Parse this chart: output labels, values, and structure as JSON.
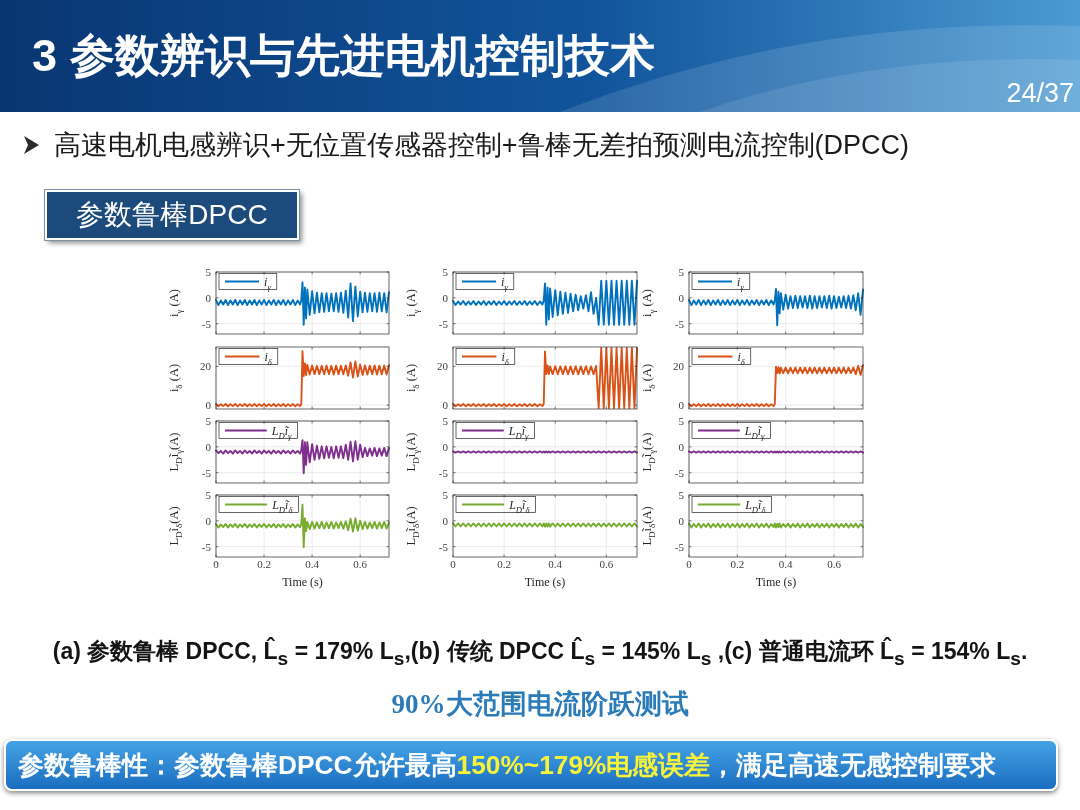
{
  "chart_data": [
    {
      "type": "other",
      "title": "3 参数辨识与先进电机控制技术",
      "subtitle": "高速电机电感辨识+无位置传感器控制+鲁棒无差拍预测电流控制(DPCC)",
      "annotations": [
        "24/37",
        "参数鲁棒DPCC"
      ]
    },
    {
      "type": "line",
      "x": [
        0,
        0.01,
        0.02,
        0.03,
        0.04,
        0.05,
        0.06,
        0.07,
        0.08,
        0.09,
        0.1,
        0.11,
        0.12,
        0.13,
        0.14,
        0.15,
        0.16,
        0.17,
        0.18,
        0.19,
        0.2,
        0.21,
        0.22,
        0.23,
        0.24,
        0.25,
        0.26,
        0.27,
        0.28,
        0.29,
        0.3,
        0.31,
        0.32,
        0.33,
        0.34,
        0.35,
        0.355,
        0.36,
        0.365,
        0.37,
        0.375,
        0.38,
        0.39,
        0.4,
        0.41,
        0.42,
        0.43,
        0.44,
        0.45,
        0.46,
        0.47,
        0.48,
        0.49,
        0.5,
        0.51,
        0.52,
        0.53,
        0.54,
        0.55,
        0.56,
        0.57,
        0.58,
        0.59,
        0.6,
        0.61,
        0.62,
        0.63,
        0.64,
        0.65,
        0.66,
        0.67,
        0.68,
        0.69,
        0.7,
        0.71,
        0.72
      ],
      "xlim": [
        0,
        0.72
      ],
      "xticks": [
        0,
        0.2,
        0.4,
        0.6
      ],
      "ylim": [
        -7,
        5
      ],
      "yticks": [
        -5,
        0,
        5
      ],
      "ylabel": "i$_{γ}$ (A)",
      "grid": true,
      "legend": "top left",
      "tick_labels": "y",
      "series": [
        {
          "name": "i$_{γ}$",
          "color": "#0072bd",
          "values": [
            -0.4,
            -1.4,
            -0.5,
            -1.3,
            -0.4,
            -1.4,
            -0.5,
            -1.3,
            -0.4,
            -1.4,
            -0.5,
            -1.3,
            -0.4,
            -1.4,
            -0.5,
            -1.3,
            -0.4,
            -1.4,
            -0.5,
            -1.3,
            -0.4,
            -1.4,
            -0.5,
            -1.3,
            -0.4,
            -1.4,
            -0.5,
            -1.3,
            -0.4,
            -1.4,
            -0.5,
            -1.3,
            -0.4,
            -1.4,
            -0.5,
            -1.3,
            -0.4,
            3.0,
            -5.2,
            2.0,
            -4.0,
            1.6,
            -3.3,
            1.3,
            -3.0,
            1.0,
            -2.8,
            0.9,
            -2.7,
            0.9,
            -2.6,
            0.8,
            -2.6,
            0.9,
            -2.7,
            1.0,
            -2.9,
            1.4,
            -3.8,
            2.8,
            -4.5,
            2.2,
            -3.6,
            1.2,
            -2.8,
            1.0,
            -2.7,
            0.9,
            -2.6,
            0.9,
            -2.7,
            1.0,
            -2.6,
            0.9,
            -2.8,
            1.1
          ]
        }
      ]
    },
    {
      "type": "line",
      "x": [
        0,
        0.01,
        0.02,
        0.03,
        0.04,
        0.05,
        0.06,
        0.07,
        0.08,
        0.09,
        0.1,
        0.11,
        0.12,
        0.13,
        0.14,
        0.15,
        0.16,
        0.17,
        0.18,
        0.19,
        0.2,
        0.21,
        0.22,
        0.23,
        0.24,
        0.25,
        0.26,
        0.27,
        0.28,
        0.29,
        0.3,
        0.31,
        0.32,
        0.33,
        0.34,
        0.35,
        0.355,
        0.36,
        0.365,
        0.37,
        0.375,
        0.38,
        0.39,
        0.4,
        0.41,
        0.42,
        0.43,
        0.44,
        0.45,
        0.46,
        0.47,
        0.48,
        0.49,
        0.5,
        0.51,
        0.52,
        0.53,
        0.54,
        0.55,
        0.56,
        0.57,
        0.58,
        0.59,
        0.6,
        0.61,
        0.62,
        0.63,
        0.64,
        0.65,
        0.66,
        0.67,
        0.68,
        0.69,
        0.7,
        0.71,
        0.72
      ],
      "xlim": [
        0,
        0.72
      ],
      "xticks": [
        0,
        0.2,
        0.4,
        0.6
      ],
      "ylim": [
        -7,
        5
      ],
      "yticks": [
        -5,
        0,
        5
      ],
      "ylabel": "i$_{γ}$ (A)",
      "grid": true,
      "legend": "top left",
      "tick_labels": "y",
      "series": [
        {
          "name": "i$_{γ}$",
          "color": "#0072bd",
          "values": [
            -0.6,
            -1.4,
            -0.7,
            -1.3,
            -0.6,
            -1.4,
            -0.7,
            -1.3,
            -0.6,
            -1.4,
            -0.7,
            -1.3,
            -0.6,
            -1.4,
            -0.7,
            -1.3,
            -0.6,
            -1.4,
            -0.7,
            -1.3,
            -0.6,
            -1.4,
            -0.7,
            -1.3,
            -0.6,
            -1.4,
            -0.7,
            -1.3,
            -0.6,
            -1.4,
            -0.7,
            -1.3,
            -0.6,
            -1.4,
            -0.7,
            -1.3,
            -0.6,
            2.8,
            -5.2,
            2.0,
            -4.2,
            1.8,
            -3.7,
            1.5,
            -3.4,
            1.2,
            -3.1,
            1.0,
            -2.9,
            0.8,
            -2.6,
            0.6,
            -2.4,
            0.3,
            -2.1,
            0.5,
            -2.6,
            1.1,
            -3.1,
            0.0,
            -5.2,
            3.3,
            -5.2,
            3.3,
            -5.2,
            3.3,
            -5.2,
            3.3,
            -5.2,
            3.3,
            -5.2,
            3.3,
            -5.2,
            3.3,
            -5.2,
            3.3
          ]
        }
      ]
    },
    {
      "type": "line",
      "x": [
        0,
        0.01,
        0.02,
        0.03,
        0.04,
        0.05,
        0.06,
        0.07,
        0.08,
        0.09,
        0.1,
        0.11,
        0.12,
        0.13,
        0.14,
        0.15,
        0.16,
        0.17,
        0.18,
        0.19,
        0.2,
        0.21,
        0.22,
        0.23,
        0.24,
        0.25,
        0.26,
        0.27,
        0.28,
        0.29,
        0.3,
        0.31,
        0.32,
        0.33,
        0.34,
        0.35,
        0.355,
        0.36,
        0.365,
        0.37,
        0.375,
        0.38,
        0.39,
        0.4,
        0.41,
        0.42,
        0.43,
        0.44,
        0.45,
        0.46,
        0.47,
        0.48,
        0.49,
        0.5,
        0.51,
        0.52,
        0.53,
        0.54,
        0.55,
        0.56,
        0.57,
        0.58,
        0.59,
        0.6,
        0.61,
        0.62,
        0.63,
        0.64,
        0.65,
        0.66,
        0.67,
        0.68,
        0.69,
        0.7,
        0.71,
        0.72
      ],
      "xlim": [
        0,
        0.72
      ],
      "xticks": [
        0,
        0.2,
        0.4,
        0.6
      ],
      "ylim": [
        -7,
        5
      ],
      "yticks": [
        -5,
        0,
        5
      ],
      "ylabel": "i$_{γ}$ (A)",
      "grid": true,
      "legend": "top left",
      "tick_labels": "y",
      "series": [
        {
          "name": "i$_{γ}$",
          "color": "#0072bd",
          "values": [
            -0.4,
            -1.4,
            -0.5,
            -1.3,
            -0.4,
            -1.4,
            -0.5,
            -1.3,
            -0.4,
            -1.4,
            -0.5,
            -1.3,
            -0.4,
            -1.4,
            -0.5,
            -1.3,
            -0.4,
            -1.4,
            -0.5,
            -1.3,
            -0.4,
            -1.4,
            -0.5,
            -1.3,
            -0.4,
            -1.4,
            -0.5,
            -1.3,
            -0.4,
            -1.4,
            -0.5,
            -1.3,
            -0.4,
            -1.4,
            -0.5,
            -1.3,
            -0.4,
            1.7,
            -5.3,
            1.2,
            -3.0,
            0.9,
            -2.3,
            0.6,
            -2.1,
            0.3,
            -2.0,
            0.4,
            -2.0,
            0.3,
            -1.9,
            0.3,
            -2.0,
            0.4,
            -2.1,
            0.3,
            -2.0,
            0.3,
            -1.9,
            0.3,
            -2.0,
            0.4,
            -2.1,
            0.3,
            -2.0,
            0.2,
            -1.9,
            0.3,
            -2.0,
            0.4,
            -2.1,
            0.5,
            -2.4,
            0.9,
            -3.3,
            1.6
          ]
        }
      ]
    },
    {
      "type": "line",
      "x": [
        0,
        0.01,
        0.02,
        0.03,
        0.04,
        0.05,
        0.06,
        0.07,
        0.08,
        0.09,
        0.1,
        0.11,
        0.12,
        0.13,
        0.14,
        0.15,
        0.16,
        0.17,
        0.18,
        0.19,
        0.2,
        0.21,
        0.22,
        0.23,
        0.24,
        0.25,
        0.26,
        0.27,
        0.28,
        0.29,
        0.3,
        0.31,
        0.32,
        0.33,
        0.34,
        0.35,
        0.355,
        0.36,
        0.365,
        0.37,
        0.375,
        0.38,
        0.39,
        0.4,
        0.41,
        0.42,
        0.43,
        0.44,
        0.45,
        0.46,
        0.47,
        0.48,
        0.49,
        0.5,
        0.51,
        0.52,
        0.53,
        0.54,
        0.55,
        0.56,
        0.57,
        0.58,
        0.59,
        0.6,
        0.61,
        0.62,
        0.63,
        0.64,
        0.65,
        0.66,
        0.67,
        0.68,
        0.69,
        0.7,
        0.71,
        0.72
      ],
      "xlim": [
        0,
        0.72
      ],
      "xticks": [
        0,
        0.2,
        0.4,
        0.6
      ],
      "ylim": [
        -2,
        30
      ],
      "yticks": [
        0,
        20
      ],
      "ylabel": "i$_{δ}$ (A)",
      "grid": true,
      "legend": "top left",
      "tick_labels": "y",
      "series": [
        {
          "name": "i$_{δ}$",
          "color": "#d95319",
          "values": [
            0.6,
            -0.6,
            0.5,
            -0.5,
            0.6,
            -0.6,
            0.5,
            -0.5,
            0.6,
            -0.6,
            0.5,
            -0.5,
            0.6,
            -0.6,
            0.5,
            -0.5,
            0.6,
            -0.6,
            0.5,
            -0.5,
            0.6,
            -0.6,
            0.5,
            -0.5,
            0.6,
            -0.6,
            0.5,
            -0.5,
            0.6,
            -0.6,
            0.5,
            -0.5,
            0.6,
            -0.6,
            0.5,
            -0.5,
            0.6,
            27.8,
            15.0,
            21.5,
            15.5,
            20.8,
            15.8,
            20.5,
            16.0,
            20.3,
            16.0,
            20.3,
            15.9,
            20.4,
            16.0,
            20.3,
            15.8,
            20.4,
            16.0,
            20.3,
            15.9,
            20.5,
            15.2,
            22.0,
            14.2,
            22.5,
            14.8,
            21.0,
            15.6,
            20.5,
            15.8,
            20.4,
            15.9,
            20.5,
            15.8,
            20.4,
            15.9,
            20.5,
            15.8,
            20.6
          ]
        }
      ]
    },
    {
      "type": "line",
      "x": [
        0,
        0.01,
        0.02,
        0.03,
        0.04,
        0.05,
        0.06,
        0.07,
        0.08,
        0.09,
        0.1,
        0.11,
        0.12,
        0.13,
        0.14,
        0.15,
        0.16,
        0.17,
        0.18,
        0.19,
        0.2,
        0.21,
        0.22,
        0.23,
        0.24,
        0.25,
        0.26,
        0.27,
        0.28,
        0.29,
        0.3,
        0.31,
        0.32,
        0.33,
        0.34,
        0.35,
        0.355,
        0.36,
        0.365,
        0.37,
        0.375,
        0.38,
        0.39,
        0.4,
        0.41,
        0.42,
        0.43,
        0.44,
        0.45,
        0.46,
        0.47,
        0.48,
        0.49,
        0.5,
        0.51,
        0.52,
        0.53,
        0.54,
        0.55,
        0.56,
        0.57,
        0.58,
        0.59,
        0.6,
        0.61,
        0.62,
        0.63,
        0.64,
        0.65,
        0.66,
        0.67,
        0.68,
        0.69,
        0.7,
        0.71,
        0.72
      ],
      "xlim": [
        0,
        0.72
      ],
      "xticks": [
        0,
        0.2,
        0.4,
        0.6
      ],
      "ylim": [
        -2,
        30
      ],
      "yticks": [
        0,
        20
      ],
      "ylabel": "i$_{δ}$ (A)",
      "grid": true,
      "legend": "top left",
      "tick_labels": "y",
      "series": [
        {
          "name": "i$_{δ}$",
          "color": "#d95319",
          "values": [
            0.6,
            -0.6,
            0.5,
            -0.5,
            0.6,
            -0.6,
            0.5,
            -0.5,
            0.6,
            -0.6,
            0.5,
            -0.5,
            0.6,
            -0.6,
            0.5,
            -0.5,
            0.6,
            -0.6,
            0.5,
            -0.5,
            0.6,
            -0.6,
            0.5,
            -0.5,
            0.6,
            -0.6,
            0.5,
            -0.5,
            0.6,
            -0.6,
            0.5,
            -0.5,
            0.6,
            -0.6,
            0.5,
            -0.5,
            0.6,
            27.7,
            16.0,
            20.5,
            16.0,
            20.0,
            16.0,
            20.1,
            15.9,
            20.0,
            16.0,
            20.1,
            15.9,
            20.0,
            16.0,
            20.1,
            15.9,
            20.0,
            16.0,
            20.1,
            15.9,
            20.0,
            16.0,
            20.2,
            -1.5,
            29.5,
            -1.5,
            29.5,
            -1.5,
            29.5,
            -1.5,
            29.5,
            -1.5,
            29.5,
            -1.5,
            29.5,
            -1.5,
            29.5,
            -1.5,
            29.5
          ]
        }
      ]
    },
    {
      "type": "line",
      "x": [
        0,
        0.01,
        0.02,
        0.03,
        0.04,
        0.05,
        0.06,
        0.07,
        0.08,
        0.09,
        0.1,
        0.11,
        0.12,
        0.13,
        0.14,
        0.15,
        0.16,
        0.17,
        0.18,
        0.19,
        0.2,
        0.21,
        0.22,
        0.23,
        0.24,
        0.25,
        0.26,
        0.27,
        0.28,
        0.29,
        0.3,
        0.31,
        0.32,
        0.33,
        0.34,
        0.35,
        0.355,
        0.36,
        0.365,
        0.37,
        0.375,
        0.38,
        0.39,
        0.4,
        0.41,
        0.42,
        0.43,
        0.44,
        0.45,
        0.46,
        0.47,
        0.48,
        0.49,
        0.5,
        0.51,
        0.52,
        0.53,
        0.54,
        0.55,
        0.56,
        0.57,
        0.58,
        0.59,
        0.6,
        0.61,
        0.62,
        0.63,
        0.64,
        0.65,
        0.66,
        0.67,
        0.68,
        0.69,
        0.7,
        0.71,
        0.72
      ],
      "xlim": [
        0,
        0.72
      ],
      "xticks": [
        0,
        0.2,
        0.4,
        0.6
      ],
      "ylim": [
        -2,
        30
      ],
      "yticks": [
        0,
        20
      ],
      "ylabel": "i$_{δ}$ (A)",
      "grid": true,
      "legend": "top left",
      "tick_labels": "y",
      "series": [
        {
          "name": "i$_{δ}$",
          "color": "#d95319",
          "values": [
            0.6,
            -0.6,
            0.5,
            -0.5,
            0.6,
            -0.6,
            0.5,
            -0.5,
            0.6,
            -0.6,
            0.5,
            -0.5,
            0.6,
            -0.6,
            0.5,
            -0.5,
            0.6,
            -0.6,
            0.5,
            -0.5,
            0.6,
            -0.6,
            0.5,
            -0.5,
            0.6,
            -0.6,
            0.5,
            -0.5,
            0.6,
            -0.6,
            0.5,
            -0.5,
            0.6,
            -0.6,
            0.5,
            -0.5,
            0.6,
            19.8,
            16.5,
            19.6,
            16.3,
            19.3,
            16.5,
            19.4,
            16.4,
            19.3,
            16.5,
            19.4,
            16.4,
            19.3,
            16.5,
            19.4,
            16.4,
            19.3,
            16.5,
            19.4,
            16.4,
            19.3,
            16.5,
            19.4,
            16.4,
            19.3,
            16.5,
            19.4,
            16.4,
            19.3,
            16.5,
            19.4,
            16.4,
            19.3,
            16.5,
            19.4,
            16.0,
            20.3,
            15.6,
            20.6
          ]
        }
      ]
    },
    {
      "type": "line",
      "x": [
        0,
        0.01,
        0.02,
        0.03,
        0.04,
        0.05,
        0.06,
        0.07,
        0.08,
        0.09,
        0.1,
        0.11,
        0.12,
        0.13,
        0.14,
        0.15,
        0.16,
        0.17,
        0.18,
        0.19,
        0.2,
        0.21,
        0.22,
        0.23,
        0.24,
        0.25,
        0.26,
        0.27,
        0.28,
        0.29,
        0.3,
        0.31,
        0.32,
        0.33,
        0.34,
        0.35,
        0.355,
        0.36,
        0.365,
        0.37,
        0.375,
        0.38,
        0.39,
        0.4,
        0.41,
        0.42,
        0.43,
        0.44,
        0.45,
        0.46,
        0.47,
        0.48,
        0.49,
        0.5,
        0.51,
        0.52,
        0.53,
        0.54,
        0.55,
        0.56,
        0.57,
        0.58,
        0.59,
        0.6,
        0.61,
        0.62,
        0.63,
        0.64,
        0.65,
        0.66,
        0.67,
        0.68,
        0.69,
        0.7,
        0.71,
        0.72
      ],
      "xlim": [
        0,
        0.72
      ],
      "xticks": [
        0,
        0.2,
        0.4,
        0.6
      ],
      "ylim": [
        -7,
        5
      ],
      "yticks": [
        -5,
        0,
        5
      ],
      "ylabel": "L$_{D}$ĩ$_{γ}$(A)",
      "grid": true,
      "legend": "top left",
      "tick_labels": "y",
      "series": [
        {
          "name": "L$_{D}$ĩ$_{γ}$",
          "color": "#7e2f8e",
          "values": [
            -0.7,
            -1.2,
            -0.8,
            -1.3,
            -0.7,
            -1.2,
            -0.8,
            -1.3,
            -0.7,
            -1.2,
            -0.8,
            -1.3,
            -0.7,
            -1.2,
            -0.8,
            -1.3,
            -0.7,
            -1.2,
            -0.8,
            -1.3,
            -0.7,
            -1.2,
            -0.8,
            -1.3,
            -0.7,
            -1.2,
            -0.8,
            -1.3,
            -0.7,
            -1.2,
            -0.8,
            -1.3,
            -0.7,
            -1.2,
            -0.8,
            -1.3,
            -0.7,
            1.3,
            -5.1,
            0.9,
            -3.5,
            0.9,
            -3.0,
            0.5,
            -2.5,
            0.2,
            -2.3,
            0.1,
            -2.2,
            0.1,
            -2.1,
            0.0,
            -2.2,
            0.1,
            -2.1,
            0.1,
            -2.2,
            0.4,
            -2.5,
            1.0,
            -2.8,
            1.1,
            -2.5,
            0.4,
            -2.0,
            -0.2,
            -1.8,
            -0.3,
            -1.7,
            -0.2,
            -1.8,
            -0.3,
            -1.7,
            -0.2,
            -1.8,
            -0.2
          ]
        }
      ]
    },
    {
      "type": "line",
      "x": [
        0,
        0.01,
        0.02,
        0.03,
        0.04,
        0.05,
        0.06,
        0.07,
        0.08,
        0.09,
        0.1,
        0.11,
        0.12,
        0.13,
        0.14,
        0.15,
        0.16,
        0.17,
        0.18,
        0.19,
        0.2,
        0.21,
        0.22,
        0.23,
        0.24,
        0.25,
        0.26,
        0.27,
        0.28,
        0.29,
        0.3,
        0.31,
        0.32,
        0.33,
        0.34,
        0.35,
        0.355,
        0.36,
        0.365,
        0.37,
        0.375,
        0.38,
        0.39,
        0.4,
        0.41,
        0.42,
        0.43,
        0.44,
        0.45,
        0.46,
        0.47,
        0.48,
        0.49,
        0.5,
        0.51,
        0.52,
        0.53,
        0.54,
        0.55,
        0.56,
        0.57,
        0.58,
        0.59,
        0.6,
        0.61,
        0.62,
        0.63,
        0.64,
        0.65,
        0.66,
        0.67,
        0.68,
        0.69,
        0.7,
        0.71,
        0.72
      ],
      "xlim": [
        0,
        0.72
      ],
      "xticks": [
        0,
        0.2,
        0.4,
        0.6
      ],
      "ylim": [
        -7,
        5
      ],
      "yticks": [
        -5,
        0,
        5
      ],
      "ylabel": "L$_{D}$ĩ$_{γ}$(A)",
      "grid": true,
      "legend": "top left",
      "tick_labels": "y",
      "series": [
        {
          "name": "L$_{D}$ĩ$_{γ}$",
          "color": "#7e2f8e",
          "values": [
            -0.9,
            -1.1,
            -0.9,
            -1.1,
            -0.9,
            -1.1,
            -0.9,
            -1.1,
            -0.9,
            -1.1,
            -0.9,
            -1.1,
            -0.9,
            -1.1,
            -0.9,
            -1.1,
            -0.9,
            -1.1,
            -0.9,
            -1.1,
            -0.9,
            -1.1,
            -0.9,
            -1.1,
            -0.9,
            -1.1,
            -0.9,
            -1.1,
            -0.9,
            -1.1,
            -0.9,
            -1.1,
            -0.9,
            -1.1,
            -0.9,
            -1.1,
            -0.9,
            -1.1,
            -0.9,
            -1.1,
            -0.9,
            -1.1,
            -0.9,
            -1.1,
            -0.9,
            -1.1,
            -0.9,
            -1.1,
            -0.9,
            -1.1,
            -0.9,
            -1.1,
            -0.9,
            -1.1,
            -0.9,
            -1.1,
            -0.9,
            -1.1,
            -0.9,
            -1.1,
            -0.9,
            -1.1,
            -0.9,
            -1.1,
            -0.9,
            -1.1,
            -0.9,
            -1.1,
            -0.9,
            -1.1,
            -0.9,
            -1.1,
            -0.9,
            -1.1,
            -0.9,
            -1.1
          ]
        }
      ]
    },
    {
      "type": "line",
      "x": [
        0,
        0.01,
        0.02,
        0.03,
        0.04,
        0.05,
        0.06,
        0.07,
        0.08,
        0.09,
        0.1,
        0.11,
        0.12,
        0.13,
        0.14,
        0.15,
        0.16,
        0.17,
        0.18,
        0.19,
        0.2,
        0.21,
        0.22,
        0.23,
        0.24,
        0.25,
        0.26,
        0.27,
        0.28,
        0.29,
        0.3,
        0.31,
        0.32,
        0.33,
        0.34,
        0.35,
        0.355,
        0.36,
        0.365,
        0.37,
        0.375,
        0.38,
        0.39,
        0.4,
        0.41,
        0.42,
        0.43,
        0.44,
        0.45,
        0.46,
        0.47,
        0.48,
        0.49,
        0.5,
        0.51,
        0.52,
        0.53,
        0.54,
        0.55,
        0.56,
        0.57,
        0.58,
        0.59,
        0.6,
        0.61,
        0.62,
        0.63,
        0.64,
        0.65,
        0.66,
        0.67,
        0.68,
        0.69,
        0.7,
        0.71,
        0.72
      ],
      "xlim": [
        0,
        0.72
      ],
      "xticks": [
        0,
        0.2,
        0.4,
        0.6
      ],
      "ylim": [
        -7,
        5
      ],
      "yticks": [
        -5,
        0,
        5
      ],
      "ylabel": "L$_{D}$ĩ$_{γ}$(A)",
      "grid": true,
      "legend": "top left",
      "tick_labels": "y",
      "series": [
        {
          "name": "L$_{D}$ĩ$_{γ}$",
          "color": "#7e2f8e",
          "values": [
            -0.9,
            -1.1,
            -0.9,
            -1.1,
            -0.9,
            -1.1,
            -0.9,
            -1.1,
            -0.9,
            -1.1,
            -0.9,
            -1.1,
            -0.9,
            -1.1,
            -0.9,
            -1.1,
            -0.9,
            -1.1,
            -0.9,
            -1.1,
            -0.9,
            -1.1,
            -0.9,
            -1.1,
            -0.9,
            -1.1,
            -0.9,
            -1.1,
            -0.9,
            -1.1,
            -0.9,
            -1.1,
            -0.9,
            -1.1,
            -0.9,
            -1.1,
            -0.9,
            -1.1,
            -0.9,
            -1.1,
            -0.9,
            -1.1,
            -0.9,
            -1.1,
            -0.9,
            -1.1,
            -0.9,
            -1.1,
            -0.9,
            -1.1,
            -0.9,
            -1.1,
            -0.9,
            -1.1,
            -0.9,
            -1.1,
            -0.9,
            -1.1,
            -0.9,
            -1.1,
            -0.9,
            -1.1,
            -0.9,
            -1.1,
            -0.9,
            -1.1,
            -0.9,
            -1.1,
            -0.9,
            -1.1,
            -0.9,
            -1.1,
            -0.9,
            -1.1,
            -0.9,
            -1.1
          ]
        }
      ]
    },
    {
      "type": "line",
      "x": [
        0,
        0.01,
        0.02,
        0.03,
        0.04,
        0.05,
        0.06,
        0.07,
        0.08,
        0.09,
        0.1,
        0.11,
        0.12,
        0.13,
        0.14,
        0.15,
        0.16,
        0.17,
        0.18,
        0.19,
        0.2,
        0.21,
        0.22,
        0.23,
        0.24,
        0.25,
        0.26,
        0.27,
        0.28,
        0.29,
        0.3,
        0.31,
        0.32,
        0.33,
        0.34,
        0.35,
        0.355,
        0.36,
        0.365,
        0.37,
        0.375,
        0.38,
        0.39,
        0.4,
        0.41,
        0.42,
        0.43,
        0.44,
        0.45,
        0.46,
        0.47,
        0.48,
        0.49,
        0.5,
        0.51,
        0.52,
        0.53,
        0.54,
        0.55,
        0.56,
        0.57,
        0.58,
        0.59,
        0.6,
        0.61,
        0.62,
        0.63,
        0.64,
        0.65,
        0.66,
        0.67,
        0.68,
        0.69,
        0.7,
        0.71,
        0.72
      ],
      "xlim": [
        0,
        0.72
      ],
      "xticks": [
        0,
        0.2,
        0.4,
        0.6
      ],
      "ylim": [
        -7,
        5
      ],
      "yticks": [
        -5,
        0,
        5
      ],
      "ylabel": "L$_{D}$ĩ$_{δ}$(A)",
      "xlabel": "Time (s)",
      "grid": true,
      "legend": "top left",
      "series": [
        {
          "name": "L$_{D}$ĩ$_{δ}$",
          "color": "#77ac30",
          "values": [
            -0.6,
            -1.3,
            -0.7,
            -1.2,
            -0.6,
            -1.3,
            -0.7,
            -1.2,
            -0.6,
            -1.3,
            -0.7,
            -1.2,
            -0.6,
            -1.3,
            -0.7,
            -1.2,
            -0.6,
            -1.3,
            -0.7,
            -1.2,
            -0.6,
            -1.3,
            -0.7,
            -1.2,
            -0.6,
            -1.3,
            -0.7,
            -1.2,
            -0.6,
            -1.3,
            -0.7,
            -1.2,
            -0.6,
            -1.3,
            -0.7,
            -1.2,
            -0.6,
            3.1,
            -5.1,
            0.5,
            -2.0,
            -0.2,
            -1.6,
            -0.2,
            -1.5,
            -0.3,
            -1.4,
            -0.2,
            -1.5,
            -0.3,
            -1.4,
            -0.2,
            -1.5,
            -0.3,
            -1.4,
            -0.2,
            -1.5,
            -0.1,
            -1.8,
            0.4,
            -2.1,
            0.5,
            -1.9,
            0.0,
            -1.6,
            -0.2,
            -1.5,
            -0.3,
            -1.4,
            -0.2,
            -1.5,
            -0.3,
            -1.4,
            -0.2,
            -1.5,
            -0.3
          ]
        }
      ]
    },
    {
      "type": "line",
      "x": [
        0,
        0.01,
        0.02,
        0.03,
        0.04,
        0.05,
        0.06,
        0.07,
        0.08,
        0.09,
        0.1,
        0.11,
        0.12,
        0.13,
        0.14,
        0.15,
        0.16,
        0.17,
        0.18,
        0.19,
        0.2,
        0.21,
        0.22,
        0.23,
        0.24,
        0.25,
        0.26,
        0.27,
        0.28,
        0.29,
        0.3,
        0.31,
        0.32,
        0.33,
        0.34,
        0.35,
        0.355,
        0.36,
        0.365,
        0.37,
        0.375,
        0.38,
        0.39,
        0.4,
        0.41,
        0.42,
        0.43,
        0.44,
        0.45,
        0.46,
        0.47,
        0.48,
        0.49,
        0.5,
        0.51,
        0.52,
        0.53,
        0.54,
        0.55,
        0.56,
        0.57,
        0.58,
        0.59,
        0.6,
        0.61,
        0.62,
        0.63,
        0.64,
        0.65,
        0.66,
        0.67,
        0.68,
        0.69,
        0.7,
        0.71,
        0.72
      ],
      "xlim": [
        0,
        0.72
      ],
      "xticks": [
        0,
        0.2,
        0.4,
        0.6
      ],
      "ylim": [
        -7,
        5
      ],
      "yticks": [
        -5,
        0,
        5
      ],
      "ylabel": "L$_{D}$ĩ$_{δ}$(A)",
      "xlabel": "Time (s)",
      "grid": true,
      "legend": "top left",
      "series": [
        {
          "name": "L$_{D}$ĩ$_{δ}$",
          "color": "#77ac30",
          "values": [
            -0.5,
            -1.1,
            -0.5,
            -1.1,
            -0.5,
            -1.1,
            -0.5,
            -1.1,
            -0.5,
            -1.1,
            -0.5,
            -1.1,
            -0.5,
            -1.1,
            -0.5,
            -1.1,
            -0.5,
            -1.1,
            -0.5,
            -1.1,
            -0.5,
            -1.1,
            -0.5,
            -1.1,
            -0.5,
            -1.1,
            -0.5,
            -1.1,
            -0.5,
            -1.1,
            -0.5,
            -1.1,
            -0.5,
            -1.1,
            -0.5,
            -1.1,
            -0.5,
            -1.1,
            -0.5,
            -1.1,
            -0.5,
            -1.1,
            -0.5,
            -1.1,
            -0.5,
            -1.1,
            -0.5,
            -1.1,
            -0.5,
            -1.1,
            -0.5,
            -1.1,
            -0.5,
            -1.1,
            -0.5,
            -1.1,
            -0.5,
            -1.1,
            -0.5,
            -1.1,
            -0.5,
            -1.1,
            -0.5,
            -1.1,
            -0.5,
            -1.1,
            -0.5,
            -1.1,
            -0.5,
            -1.1,
            -0.5,
            -1.1,
            -0.5,
            -1.1,
            -0.5,
            -1.1
          ]
        }
      ]
    },
    {
      "type": "line",
      "x": [
        0,
        0.01,
        0.02,
        0.03,
        0.04,
        0.05,
        0.06,
        0.07,
        0.08,
        0.09,
        0.1,
        0.11,
        0.12,
        0.13,
        0.14,
        0.15,
        0.16,
        0.17,
        0.18,
        0.19,
        0.2,
        0.21,
        0.22,
        0.23,
        0.24,
        0.25,
        0.26,
        0.27,
        0.28,
        0.29,
        0.3,
        0.31,
        0.32,
        0.33,
        0.34,
        0.35,
        0.355,
        0.36,
        0.365,
        0.37,
        0.375,
        0.38,
        0.39,
        0.4,
        0.41,
        0.42,
        0.43,
        0.44,
        0.45,
        0.46,
        0.47,
        0.48,
        0.49,
        0.5,
        0.51,
        0.52,
        0.53,
        0.54,
        0.55,
        0.56,
        0.57,
        0.58,
        0.59,
        0.6,
        0.61,
        0.62,
        0.63,
        0.64,
        0.65,
        0.66,
        0.67,
        0.68,
        0.69,
        0.7,
        0.71,
        0.72
      ],
      "xlim": [
        0,
        0.72
      ],
      "xticks": [
        0,
        0.2,
        0.4,
        0.6
      ],
      "ylim": [
        -7,
        5
      ],
      "yticks": [
        -5,
        0,
        5
      ],
      "ylabel": "L$_{D}$ĩ$_{δ}$(A)",
      "xlabel": "Time (s)",
      "grid": true,
      "legend": "top left",
      "series": [
        {
          "name": "L$_{D}$ĩ$_{δ}$",
          "color": "#77ac30",
          "values": [
            -0.5,
            -1.3,
            -0.6,
            -1.2,
            -0.5,
            -1.3,
            -0.6,
            -1.2,
            -0.5,
            -1.3,
            -0.6,
            -1.2,
            -0.5,
            -1.3,
            -0.6,
            -1.2,
            -0.5,
            -1.3,
            -0.6,
            -1.2,
            -0.5,
            -1.3,
            -0.6,
            -1.2,
            -0.5,
            -1.3,
            -0.6,
            -1.2,
            -0.5,
            -1.3,
            -0.6,
            -1.2,
            -0.5,
            -1.3,
            -0.6,
            -1.2,
            -0.5,
            -1.3,
            -0.6,
            -1.2,
            -0.5,
            -1.3,
            -0.6,
            -1.2,
            -0.5,
            -1.3,
            -0.6,
            -1.2,
            -0.5,
            -1.3,
            -0.6,
            -1.2,
            -0.5,
            -1.3,
            -0.6,
            -1.2,
            -0.5,
            -1.3,
            -0.6,
            -1.2,
            -0.5,
            -1.3,
            -0.6,
            -1.2,
            -0.5,
            -1.3,
            -0.6,
            -1.2,
            -0.5,
            -1.3,
            -0.6,
            -1.2,
            -0.5,
            -1.3,
            -0.6,
            -1.2
          ]
        }
      ]
    },
    {
      "type": "other",
      "annotations": [
        "(a) 参数鲁棒 DPCC, L̂$_{s}$ = 179% L$_{s}$,(b) 传统 DPCC L̂$_{s}$ = 145% L$_{s}$ ,(c) 普通电流环 L̂$_{s}$ = 154% L$_{s}$.",
        "90%大范围电流阶跃测试",
        "参数鲁棒性：参数鲁棒DPCC允许最高",
        "150%~179%电感误差",
        "，满足高速无感控制要求"
      ]
    }
  ]
}
